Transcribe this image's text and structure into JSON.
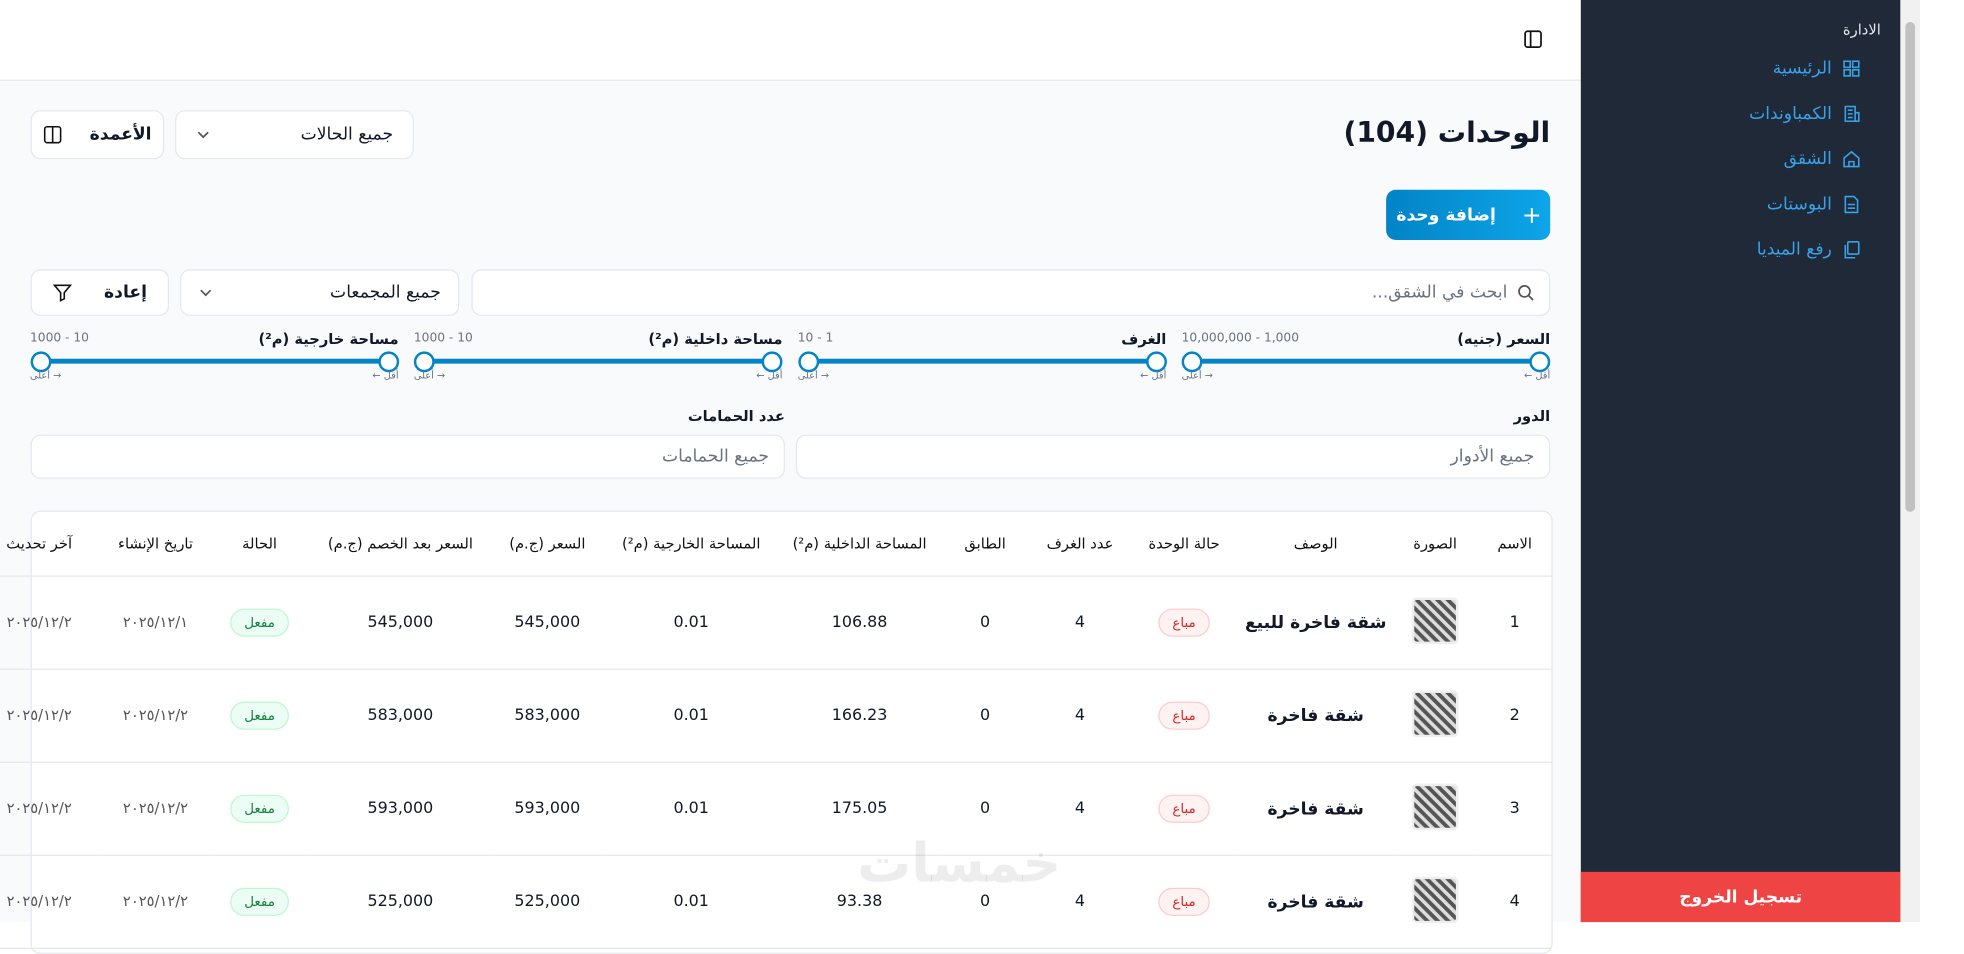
{
  "sidebar": {
    "section": "الادارة",
    "items": [
      "الرئيسية",
      "الكمباوندات",
      "الشقق",
      "البوستات",
      "رفع الميديا"
    ],
    "logout": "تسجيل الخروج"
  },
  "page": {
    "title": "الوحدات (104)",
    "status_filter": "جميع الحالات",
    "columns_button": "الأعمدة",
    "add_button": "إضافة وحدة",
    "search_placeholder": "ابحث في الشقق...",
    "compound_filter": "جميع المجمعات",
    "reset_button": "إعادة",
    "watermark": "خمسات"
  },
  "sliders": [
    {
      "label": "السعر (جنيه)",
      "range": "1,000 - 10,000,000",
      "min_hint": "أقل ←",
      "max_hint": "→ أعلى"
    },
    {
      "label": "الغرف",
      "range": "1 - 10",
      "min_hint": "أقل ←",
      "max_hint": "→ أعلى"
    },
    {
      "label": "مساحة داخلية (م²)",
      "range": "10 - 1000",
      "min_hint": "أقل ←",
      "max_hint": "→ أعلى"
    },
    {
      "label": "مساحة خارجية (م²)",
      "range": "10 - 1000",
      "min_hint": "أقل ←",
      "max_hint": "→ أعلى"
    }
  ],
  "dropdowns": [
    {
      "label": "الدور",
      "placeholder": "جميع الأدوار"
    },
    {
      "label": "عدد الحمامات",
      "placeholder": "جميع الحمامات"
    }
  ],
  "table": {
    "headers": [
      "الاسم",
      "الصورة",
      "الوصف",
      "حالة الوحدة",
      "عدد الغرف",
      "الطابق",
      "المساحة الداخلية (م²)",
      "المساحة الخارجية (م²)",
      "السعر (ج.م)",
      "السعر بعد الخصم (ج.م)",
      "الحالة",
      "تاريخ الإنشاء",
      "آخر تحديث"
    ],
    "rows": [
      [
        "1",
        "شقة فاخرة للبيع",
        "مباع",
        "4",
        "0",
        "106.88",
        "0.01",
        "545,000",
        "545,000",
        "مفعل",
        "٢٠٢٥/١٢/١",
        "٢٠٢٥/١٢/٢"
      ],
      [
        "2",
        "شقة فاخرة",
        "مباع",
        "4",
        "0",
        "166.23",
        "0.01",
        "583,000",
        "583,000",
        "مفعل",
        "٢٠٢٥/١٢/٢",
        "٢٠٢٥/١٢/٢"
      ],
      [
        "3",
        "شقة فاخرة",
        "مباع",
        "4",
        "0",
        "175.05",
        "0.01",
        "593,000",
        "593,000",
        "مفعل",
        "٢٠٢٥/١٢/٢",
        "٢٠٢٥/١٢/٢"
      ],
      [
        "4",
        "شقة فاخرة",
        "مباع",
        "4",
        "0",
        "93.38",
        "0.01",
        "525,000",
        "525,000",
        "مفعل",
        "٢٠٢٥/١٢/٢",
        "٢٠٢٥/١٢/٢"
      ]
    ]
  }
}
